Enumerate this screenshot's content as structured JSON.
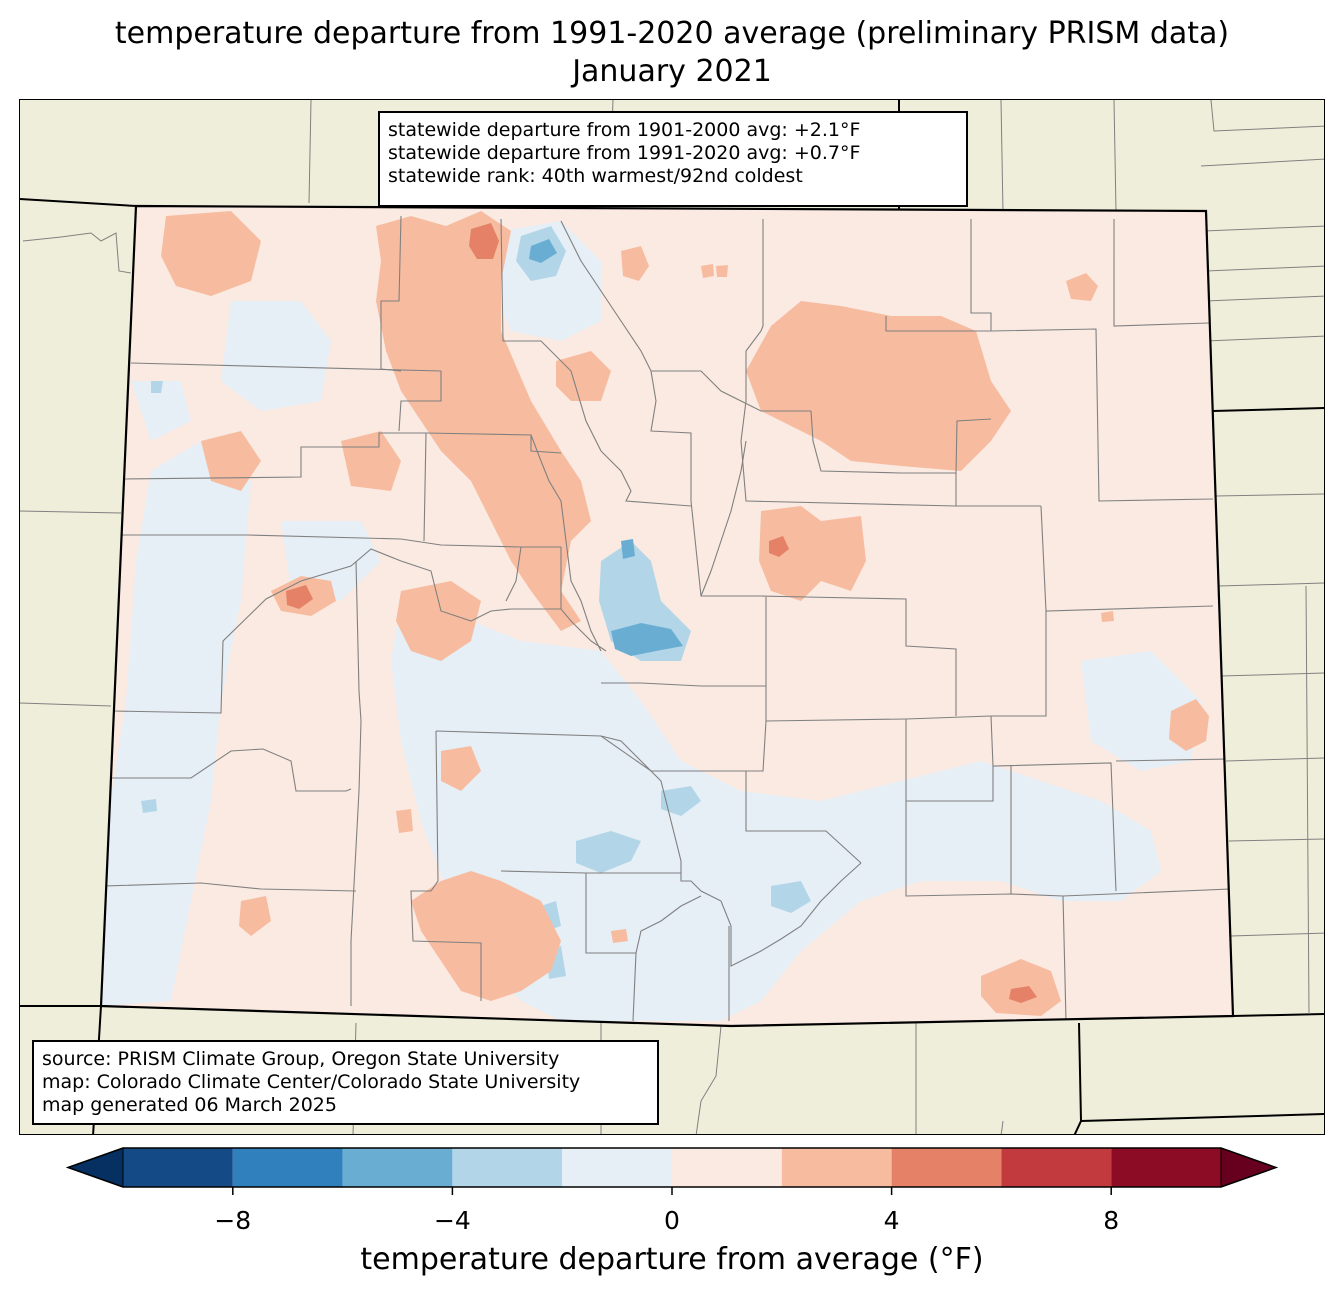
{
  "title": {
    "line1": "temperature departure from 1991-2020 average (preliminary PRISM data)",
    "line2": "January 2021"
  },
  "stats_box": {
    "line1": "statewide departure from 1901-2000 avg: +2.1°F",
    "line2": "statewide departure from 1991-2020 avg: +0.7°F",
    "line3": "statewide rank: 40th warmest/92nd coldest"
  },
  "credits_box": {
    "line1": "source: PRISM Climate Group, Oregon State University",
    "line2": "map: Colorado Climate Center/Colorado State University",
    "line3": "map generated 06 March 2025"
  },
  "colorbar": {
    "label": "temperature departure from average (°F)",
    "min": -10,
    "max": 10,
    "bounds": [
      -10,
      -8,
      -6,
      -4,
      -2,
      0,
      2,
      4,
      6,
      8,
      10
    ],
    "colors": [
      "#144b87",
      "#3080bd",
      "#6aadd3",
      "#b2d6e8",
      "#e6eef6",
      "#faeae2",
      "#f7bca0",
      "#e48166",
      "#c23a3e",
      "#8c0c25"
    ],
    "under_color": "#053061",
    "over_color": "#67001f",
    "tick_values": [
      -8,
      -4,
      0,
      4,
      8
    ],
    "tick_labels": [
      "−8",
      "−4",
      "0",
      "4",
      "8"
    ]
  },
  "colors": {
    "land_background": "#efeedb",
    "state_border": "#000000",
    "county_border": "#808080"
  }
}
